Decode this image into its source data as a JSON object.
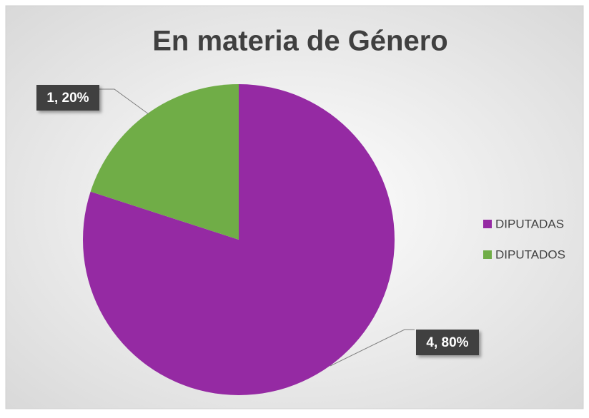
{
  "chart_data": {
    "type": "pie",
    "title": "En materia de Género",
    "categories": [
      "DIPUTADAS",
      "DIPUTADOS"
    ],
    "values": [
      4,
      1
    ],
    "value_labels": [
      "4, 80%",
      "1, 20%"
    ],
    "colors": [
      "#952aa3",
      "#70ad47"
    ],
    "legend": "right"
  }
}
